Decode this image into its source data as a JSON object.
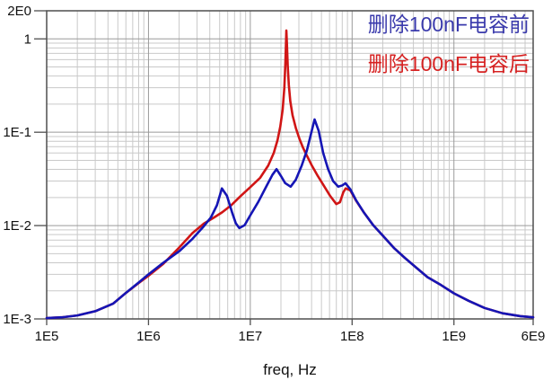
{
  "chart_data": {
    "type": "line",
    "title": "",
    "xlabel": "freq, Hz",
    "ylabel": "",
    "x_scale": "log",
    "y_scale": "log",
    "xlim": [
      100000.0,
      6000000000.0
    ],
    "ylim": [
      0.001,
      2
    ],
    "grid": "major and minor log gridlines, on",
    "legend_position": "top-right",
    "x_ticks": [
      {
        "value": 100000.0,
        "label": "1E5"
      },
      {
        "value": 1000000.0,
        "label": "1E6"
      },
      {
        "value": 10000000.0,
        "label": "1E7"
      },
      {
        "value": 100000000.0,
        "label": "1E8"
      },
      {
        "value": 1000000000.0,
        "label": "1E9"
      },
      {
        "value": 6000000000.0,
        "label": "6E9"
      }
    ],
    "y_ticks": [
      {
        "value": 2,
        "label": "2E0"
      },
      {
        "value": 1,
        "label": "1"
      },
      {
        "value": 0.1,
        "label": "1E-1"
      },
      {
        "value": 0.01,
        "label": "1E-2"
      },
      {
        "value": 0.001,
        "label": "1E-3"
      }
    ],
    "legend": [
      {
        "label": "删除100nF电容前",
        "color": "#3a3aac"
      },
      {
        "label": "删除100nF电容后",
        "color": "#d62222"
      }
    ],
    "series": [
      {
        "key": "before-removal",
        "name": "删除100nF电容前",
        "color": "#1515b5",
        "points": [
          [
            100000.0,
            0.00102
          ],
          [
            140000.0,
            0.00104
          ],
          [
            200000.0,
            0.00109
          ],
          [
            300000.0,
            0.00121
          ],
          [
            450000.0,
            0.00146
          ],
          [
            600000.0,
            0.0019
          ],
          [
            800000.0,
            0.00245
          ],
          [
            1000000.0,
            0.003
          ],
          [
            1400000.0,
            0.004
          ],
          [
            2000000.0,
            0.0053
          ],
          [
            2700000.0,
            0.0072
          ],
          [
            3400000.0,
            0.0095
          ],
          [
            4100000.0,
            0.0122
          ],
          [
            4700000.0,
            0.0165
          ],
          [
            5260000.0,
            0.025
          ],
          [
            5900000.0,
            0.0208
          ],
          [
            6600000.0,
            0.014
          ],
          [
            7200000.0,
            0.0106
          ],
          [
            7800000.0,
            0.0094
          ],
          [
            8800000.0,
            0.0101
          ],
          [
            10000000.0,
            0.0129
          ],
          [
            12000000.0,
            0.018
          ],
          [
            14500000.0,
            0.0268
          ],
          [
            16500000.0,
            0.035
          ],
          [
            18100000.0,
            0.0402
          ],
          [
            20000000.0,
            0.034
          ],
          [
            22000000.0,
            0.0285
          ],
          [
            24900000.0,
            0.0261
          ],
          [
            28000000.0,
            0.031
          ],
          [
            32000000.0,
            0.044
          ],
          [
            36000000.0,
            0.064
          ],
          [
            40000000.0,
            0.102
          ],
          [
            42800000.0,
            0.137
          ],
          [
            47000000.0,
            0.103
          ],
          [
            52000000.0,
            0.06
          ],
          [
            58000000.0,
            0.0405
          ],
          [
            65000000.0,
            0.03
          ],
          [
            73000000.0,
            0.0261
          ],
          [
            80000000.0,
            0.0269
          ],
          [
            86000000.0,
            0.0284
          ],
          [
            96000000.0,
            0.0245
          ],
          [
            110000000.0,
            0.0185
          ],
          [
            130000000.0,
            0.0139
          ],
          [
            160000000.0,
            0.0102
          ],
          [
            200000000.0,
            0.0078
          ],
          [
            260000000.0,
            0.0057
          ],
          [
            330000000.0,
            0.0045
          ],
          [
            420000000.0,
            0.0036
          ],
          [
            550000000.0,
            0.0028
          ],
          [
            750000000.0,
            0.0023
          ],
          [
            1000000000.0,
            0.00188
          ],
          [
            1400000000.0,
            0.00156
          ],
          [
            2000000000.0,
            0.00131
          ],
          [
            3000000000.0,
            0.00115
          ],
          [
            4500000000.0,
            0.00107
          ],
          [
            6000000000.0,
            0.00104
          ]
        ]
      },
      {
        "key": "after-removal",
        "name": "删除100nF电容后",
        "color": "#d01515",
        "points": [
          [
            100000.0,
            0.00102
          ],
          [
            140000.0,
            0.00104
          ],
          [
            200000.0,
            0.00109
          ],
          [
            300000.0,
            0.00121
          ],
          [
            450000.0,
            0.00146
          ],
          [
            600000.0,
            0.0019
          ],
          [
            800000.0,
            0.00242
          ],
          [
            1000000.0,
            0.0029
          ],
          [
            1400000.0,
            0.0039
          ],
          [
            2000000.0,
            0.0058
          ],
          [
            2700000.0,
            0.0083
          ],
          [
            3500000.0,
            0.0105
          ],
          [
            4400000.0,
            0.0122
          ],
          [
            5300000.0,
            0.0139
          ],
          [
            6500000.0,
            0.0165
          ],
          [
            8000000.0,
            0.0206
          ],
          [
            10000000.0,
            0.0258
          ],
          [
            12500000.0,
            0.0325
          ],
          [
            15000000.0,
            0.044
          ],
          [
            17000000.0,
            0.06
          ],
          [
            18500000.0,
            0.082
          ],
          [
            19700000.0,
            0.115
          ],
          [
            20800000.0,
            0.175
          ],
          [
            21600000.0,
            0.3
          ],
          [
            22100000.0,
            0.55
          ],
          [
            22450000.0,
            0.95
          ],
          [
            22600000.0,
            1.23
          ],
          [
            22900000.0,
            0.88
          ],
          [
            23300000.0,
            0.52
          ],
          [
            23900000.0,
            0.32
          ],
          [
            24700000.0,
            0.215
          ],
          [
            26000000.0,
            0.152
          ],
          [
            28000000.0,
            0.111
          ],
          [
            30500000.0,
            0.084
          ],
          [
            33000000.0,
            0.068
          ],
          [
            35700000.0,
            0.057
          ],
          [
            40000000.0,
            0.0445
          ],
          [
            46000000.0,
            0.034
          ],
          [
            53000000.0,
            0.0265
          ],
          [
            61000000.0,
            0.0207
          ],
          [
            70000000.0,
            0.017
          ],
          [
            76000000.0,
            0.0178
          ],
          [
            82000000.0,
            0.0228
          ],
          [
            86500000.0,
            0.025
          ],
          [
            96000000.0,
            0.0238
          ],
          [
            110000000.0,
            0.0183
          ],
          [
            130000000.0,
            0.0139
          ],
          [
            160000000.0,
            0.0102
          ],
          [
            200000000.0,
            0.0078
          ],
          [
            260000000.0,
            0.0057
          ],
          [
            330000000.0,
            0.0045
          ],
          [
            420000000.0,
            0.0036
          ],
          [
            550000000.0,
            0.0028
          ],
          [
            750000000.0,
            0.0023
          ],
          [
            1000000000.0,
            0.00188
          ],
          [
            1400000000.0,
            0.00156
          ],
          [
            2000000000.0,
            0.00131
          ],
          [
            3000000000.0,
            0.00115
          ],
          [
            4500000000.0,
            0.00107
          ],
          [
            6000000000.0,
            0.00104
          ]
        ]
      }
    ]
  },
  "colors": {
    "background": "#ffffff",
    "grid_minor": "#c9c9c9",
    "grid_major": "#9a9a9a",
    "axis_border": "#4f4f4f",
    "tick_text": "#111111"
  }
}
